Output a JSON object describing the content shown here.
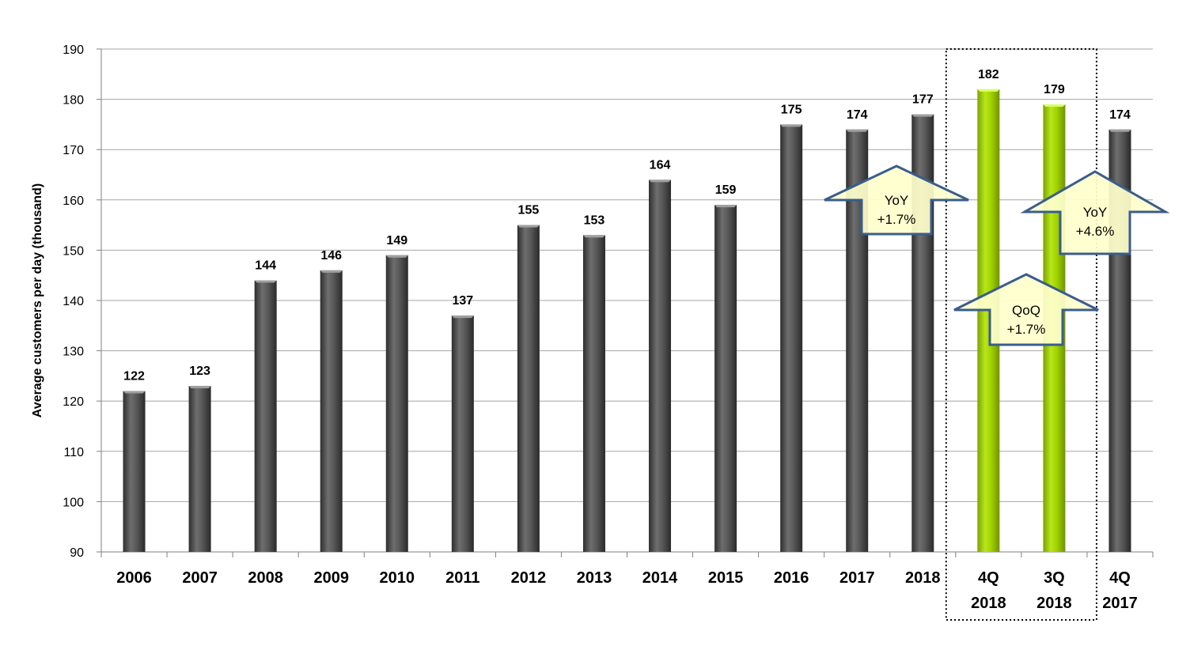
{
  "chart_data": {
    "type": "bar",
    "ylabel": "Average customers per day (thousand)",
    "xlabel": "",
    "ylim": [
      90,
      190
    ],
    "ytick_step": 10,
    "grid": true,
    "categories": [
      [
        "2006"
      ],
      [
        "2007"
      ],
      [
        "2008"
      ],
      [
        "2009"
      ],
      [
        "2010"
      ],
      [
        "2011"
      ],
      [
        "2012"
      ],
      [
        "2013"
      ],
      [
        "2014"
      ],
      [
        "2015"
      ],
      [
        "2016"
      ],
      [
        "2017"
      ],
      [
        "2018"
      ],
      [
        "4Q",
        "2018"
      ],
      [
        "3Q",
        "2018"
      ],
      [
        "4Q",
        "2017"
      ]
    ],
    "values": [
      122,
      123,
      144,
      146,
      149,
      137,
      155,
      153,
      164,
      159,
      175,
      174,
      177,
      182,
      179,
      174
    ],
    "highlighted_indices": [
      13,
      14
    ],
    "highlight_box_indices": [
      13,
      14
    ],
    "annotations": [
      {
        "line1": "YoY",
        "line2": "+1.7%",
        "between": [
          11,
          12
        ]
      },
      {
        "line1": "QoQ",
        "line2": "+1.7%",
        "between": [
          13,
          14
        ]
      },
      {
        "line1": "YoY",
        "line2": "+4.6%",
        "between": [
          14,
          15
        ]
      }
    ]
  },
  "colors": {
    "bar": "#4d4d4d",
    "bar_highlight": "#99cc00",
    "arrow_fill": "#ffffcc",
    "arrow_stroke": "#3a5d8c",
    "grid": "#a6a6a6"
  }
}
